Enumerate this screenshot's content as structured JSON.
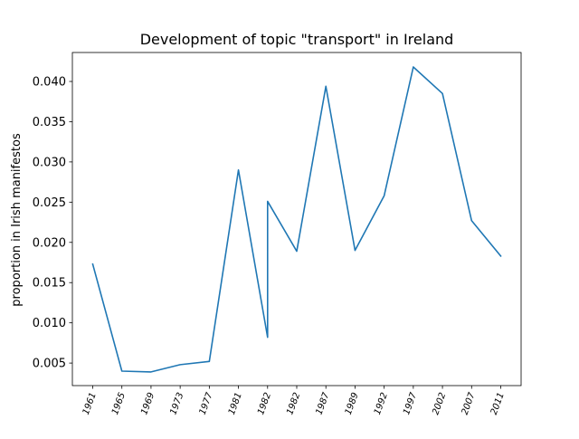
{
  "chart_data": {
    "type": "line",
    "title": "Development of topic \"transport\" in Ireland",
    "xlabel": "",
    "ylabel": "proportion in Irish manifestos",
    "x_tick_labels": [
      "1961",
      "1965",
      "1969",
      "1973",
      "1977",
      "1981",
      "1982",
      "1982",
      "1987",
      "1989",
      "1992",
      "1997",
      "2002",
      "2007",
      "2011"
    ],
    "y_ticks": [
      0.005,
      0.01,
      0.015,
      0.02,
      0.025,
      0.03,
      0.035,
      0.04
    ],
    "y_tick_labels": [
      "0.005",
      "0.010",
      "0.015",
      "0.020",
      "0.025",
      "0.030",
      "0.035",
      "0.040"
    ],
    "ylim": [
      0.0022,
      0.0436
    ],
    "grid": false,
    "series": [
      {
        "color": "#1f77b4",
        "points": [
          {
            "x": "1961",
            "y": 0.0173
          },
          {
            "x": "1965",
            "y": 0.004
          },
          {
            "x": "1969",
            "y": 0.0039
          },
          {
            "x": "1973",
            "y": 0.0048
          },
          {
            "x": "1977",
            "y": 0.0052
          },
          {
            "x": "1981",
            "y": 0.029
          },
          {
            "x": "1982",
            "y": 0.0082
          },
          {
            "x": "1982",
            "y": 0.0251
          },
          {
            "x": "1982",
            "y": 0.0189
          },
          {
            "x": "1987",
            "y": 0.0394
          },
          {
            "x": "1989",
            "y": 0.019
          },
          {
            "x": "1992",
            "y": 0.0258
          },
          {
            "x": "1997",
            "y": 0.0418
          },
          {
            "x": "2002",
            "y": 0.0385
          },
          {
            "x": "2007",
            "y": 0.0227
          },
          {
            "x": "2011",
            "y": 0.0183
          }
        ]
      }
    ]
  }
}
